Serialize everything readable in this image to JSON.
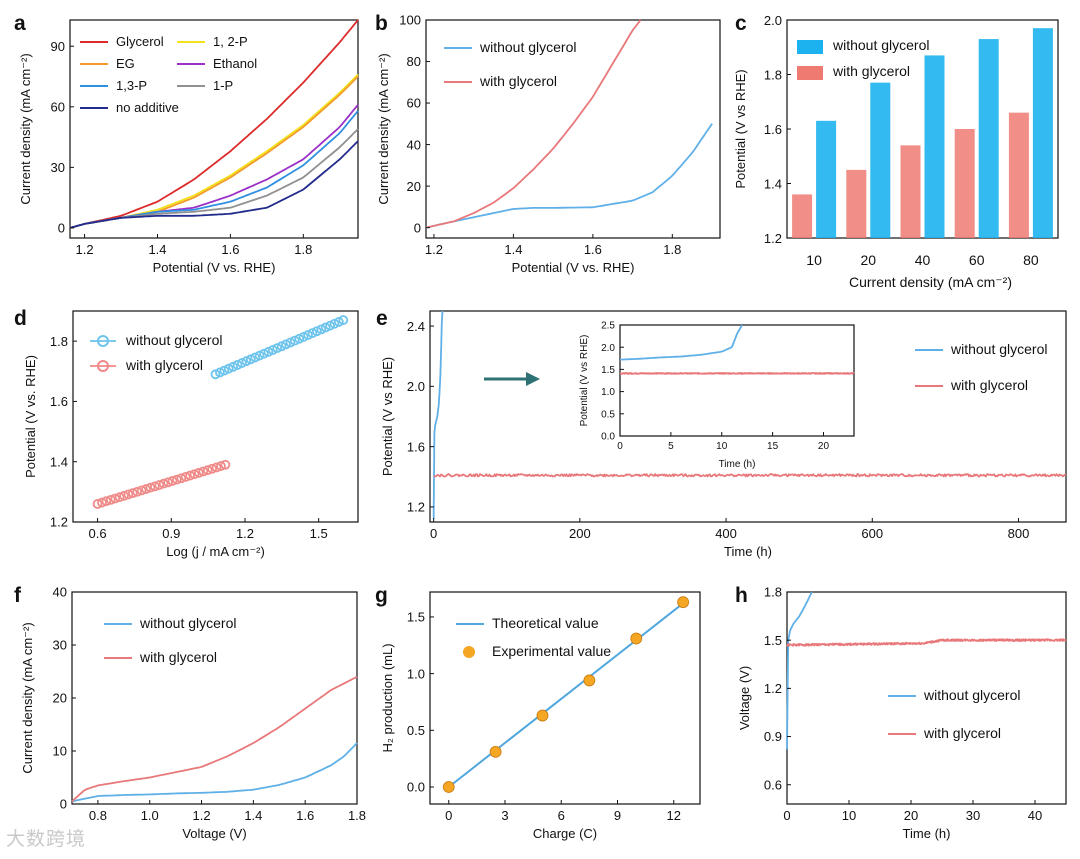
{
  "watermark": "大数跨境",
  "chart_data": [
    {
      "id": "a",
      "type": "line",
      "panel_label": "a",
      "xlabel": "Potential (V vs. RHE)",
      "ylabel": "Current density (mA cm⁻²)",
      "xlim": [
        1.16,
        1.95
      ],
      "ylim": [
        -5,
        103
      ],
      "xticks": [
        1.2,
        1.4,
        1.6,
        1.8
      ],
      "yticks": [
        0,
        30,
        60,
        90
      ],
      "xdec": 1,
      "ydec": 0,
      "legend_layout": "grid-top-left",
      "series": [
        {
          "name": "Glycerol",
          "color": "#dd2b2b",
          "x": [
            1.16,
            1.2,
            1.3,
            1.4,
            1.5,
            1.6,
            1.7,
            1.8,
            1.9,
            1.95
          ],
          "y": [
            0,
            2,
            6,
            13,
            24,
            38,
            54,
            72,
            92,
            103
          ]
        },
        {
          "name": "1, 2-P",
          "color": "#f2e21a",
          "x": [
            1.16,
            1.2,
            1.3,
            1.4,
            1.5,
            1.6,
            1.7,
            1.8,
            1.9,
            1.95
          ],
          "y": [
            0,
            2,
            5,
            9,
            16,
            26,
            38,
            51,
            67,
            76
          ]
        },
        {
          "name": "EG",
          "color": "#f39b2b",
          "x": [
            1.16,
            1.2,
            1.3,
            1.4,
            1.5,
            1.6,
            1.7,
            1.8,
            1.9,
            1.95
          ],
          "y": [
            0,
            2,
            5,
            8,
            15,
            25,
            37,
            50,
            66,
            75
          ]
        },
        {
          "name": "Ethanol",
          "color": "#9b30c8",
          "x": [
            1.16,
            1.2,
            1.3,
            1.4,
            1.5,
            1.6,
            1.7,
            1.8,
            1.9,
            1.95
          ],
          "y": [
            0,
            2,
            5,
            8,
            10,
            16,
            24,
            34,
            50,
            61
          ]
        },
        {
          "name": "1,3-P",
          "color": "#2f8fe0",
          "x": [
            1.16,
            1.2,
            1.3,
            1.4,
            1.5,
            1.6,
            1.7,
            1.8,
            1.9,
            1.95
          ],
          "y": [
            0,
            2,
            5,
            8,
            9,
            13,
            20,
            31,
            47,
            58
          ]
        },
        {
          "name": "1-P",
          "color": "#909090",
          "x": [
            1.16,
            1.2,
            1.3,
            1.4,
            1.5,
            1.6,
            1.7,
            1.8,
            1.9,
            1.95
          ],
          "y": [
            0,
            2,
            5,
            7,
            8,
            10,
            16,
            25,
            40,
            49
          ]
        },
        {
          "name": "no additive",
          "color": "#222c8c",
          "x": [
            1.16,
            1.2,
            1.3,
            1.4,
            1.5,
            1.6,
            1.7,
            1.8,
            1.9,
            1.95
          ],
          "y": [
            0,
            2,
            5,
            6,
            6,
            7,
            10,
            19,
            34,
            43
          ]
        }
      ]
    },
    {
      "id": "b",
      "type": "line",
      "panel_label": "b",
      "xlabel": "Potential (V vs. RHE)",
      "ylabel": "Current density (mA cm⁻²)",
      "xlim": [
        1.18,
        1.92
      ],
      "ylim": [
        -5,
        100
      ],
      "xticks": [
        1.2,
        1.4,
        1.6,
        1.8
      ],
      "yticks": [
        0,
        20,
        40,
        60,
        80,
        100
      ],
      "xdec": 1,
      "ydec": 0,
      "legend_layout": "top-left",
      "series": [
        {
          "name": "without glycerol",
          "color": "#5fb0e8",
          "x": [
            1.18,
            1.25,
            1.3,
            1.35,
            1.4,
            1.45,
            1.5,
            1.6,
            1.7,
            1.75,
            1.8,
            1.85,
            1.9
          ],
          "y": [
            0,
            3,
            5,
            7,
            9,
            9.5,
            9.5,
            9.8,
            13,
            17,
            25,
            36,
            50
          ]
        },
        {
          "name": "with glycerol",
          "color": "#e8787a",
          "x": [
            1.18,
            1.25,
            1.3,
            1.35,
            1.4,
            1.45,
            1.5,
            1.55,
            1.6,
            1.65,
            1.7,
            1.72
          ],
          "y": [
            0,
            3,
            7,
            12,
            19,
            28,
            38,
            50,
            63,
            79,
            95,
            100
          ]
        }
      ]
    },
    {
      "id": "c",
      "type": "bar",
      "panel_label": "c",
      "xlabel": "Current density (mA cm⁻²)",
      "ylabel": "Potential (V vs RHE)",
      "categories": [
        "10",
        "20",
        "40",
        "60",
        "80"
      ],
      "ylim": [
        1.2,
        2.0
      ],
      "yticks": [
        1.2,
        1.4,
        1.6,
        1.8,
        2.0
      ],
      "ydec": 1,
      "legend_layout": "top-left",
      "series": [
        {
          "name": "without glycerol",
          "color": "#1cb2ef",
          "values": [
            1.63,
            1.77,
            1.87,
            1.93,
            1.97
          ]
        },
        {
          "name": "with glycerol",
          "color": "#ef7a72",
          "values": [
            1.36,
            1.45,
            1.54,
            1.6,
            1.66
          ]
        }
      ]
    },
    {
      "id": "d",
      "type": "scatter",
      "panel_label": "d",
      "xlabel": "Log (j / mA cm⁻²)",
      "ylabel": "Potential (V vs. RHE)",
      "xlim": [
        0.5,
        1.66
      ],
      "ylim": [
        1.2,
        1.9
      ],
      "xticks": [
        0.6,
        0.9,
        1.2,
        1.5
      ],
      "yticks": [
        1.2,
        1.4,
        1.6,
        1.8
      ],
      "xdec": 1,
      "ydec": 1,
      "legend_layout": "top-left",
      "series": [
        {
          "name": "without glycerol",
          "color": "#6cc3ec",
          "x_range": [
            1.08,
            1.6
          ],
          "y_range": [
            1.69,
            1.87
          ],
          "points": 30
        },
        {
          "name": "with glycerol",
          "color": "#ef8a88",
          "x_range": [
            0.6,
            1.12
          ],
          "y_range": [
            1.26,
            1.39
          ],
          "points": 30
        }
      ]
    },
    {
      "id": "e",
      "type": "line",
      "panel_label": "e",
      "xlabel": "Time (h)",
      "ylabel": "Potential (V vs RHE)",
      "xlim": [
        -5,
        865
      ],
      "ylim": [
        1.1,
        2.5
      ],
      "xticks": [
        0,
        200,
        400,
        600,
        800
      ],
      "yticks": [
        1.2,
        1.6,
        2.0,
        2.4
      ],
      "xdec": 0,
      "ydec": 1,
      "legend_layout": "right",
      "series": [
        {
          "name": "without glycerol",
          "color": "#5fb0e8",
          "x": [
            0,
            1,
            2,
            3,
            4,
            5,
            6,
            7,
            8,
            9,
            10,
            11,
            12
          ],
          "y": [
            1.12,
            1.69,
            1.74,
            1.76,
            1.78,
            1.8,
            1.84,
            1.88,
            1.96,
            2.05,
            2.2,
            2.4,
            2.5
          ]
        },
        {
          "name": "with glycerol",
          "color": "#e8787a",
          "x": [
            0,
            865
          ],
          "y": [
            1.41,
            1.41
          ],
          "noise": 0.008
        }
      ],
      "inset": {
        "xlabel": "Time (h)",
        "ylabel": "Potential (V vs RHE)",
        "xlim": [
          0,
          23
        ],
        "ylim": [
          0,
          2.5
        ],
        "xticks": [
          0,
          5,
          10,
          15,
          20
        ],
        "yticks": [
          0.0,
          0.5,
          1.0,
          1.5,
          2.0,
          2.5
        ],
        "xdec": 0,
        "ydec": 1,
        "series": [
          {
            "name": "without glycerol",
            "color": "#5fb0e8",
            "x": [
              0,
              2,
              4,
              6,
              8,
              10,
              11,
              11.5,
              12
            ],
            "y": [
              1.72,
              1.74,
              1.77,
              1.79,
              1.83,
              1.9,
              2.0,
              2.3,
              2.5
            ]
          },
          {
            "name": "with glycerol",
            "color": "#e8787a",
            "x": [
              0,
              23
            ],
            "y": [
              1.41,
              1.41
            ],
            "noise": 0.01
          }
        ]
      }
    },
    {
      "id": "f",
      "type": "line",
      "panel_label": "f",
      "xlabel": "Voltage (V)",
      "ylabel": "Current density (mA cm⁻²)",
      "xlim": [
        0.7,
        1.8
      ],
      "ylim": [
        0,
        40
      ],
      "xticks": [
        0.8,
        1.0,
        1.2,
        1.4,
        1.6,
        1.8
      ],
      "yticks": [
        0,
        10,
        20,
        30,
        40
      ],
      "xdec": 1,
      "ydec": 0,
      "legend_layout": "top-left",
      "series": [
        {
          "name": "without glycerol",
          "color": "#5fb0e8",
          "x": [
            0.7,
            0.8,
            0.9,
            1.0,
            1.1,
            1.2,
            1.3,
            1.4,
            1.5,
            1.6,
            1.7,
            1.75,
            1.8
          ],
          "y": [
            0.5,
            1.5,
            1.7,
            1.8,
            2,
            2.1,
            2.3,
            2.7,
            3.6,
            5,
            7.3,
            9,
            11.5
          ]
        },
        {
          "name": "with glycerol",
          "color": "#e8787a",
          "x": [
            0.7,
            0.75,
            0.8,
            0.9,
            1.0,
            1.1,
            1.2,
            1.3,
            1.4,
            1.5,
            1.6,
            1.7,
            1.8
          ],
          "y": [
            0.5,
            2.7,
            3.5,
            4.3,
            5,
            6,
            7,
            9,
            11.5,
            14.5,
            18,
            21.5,
            24
          ]
        }
      ]
    },
    {
      "id": "g",
      "type": "scatter",
      "panel_label": "g",
      "xlabel": "Charge (C)",
      "ylabel": "H₂ production (mL)",
      "xlim": [
        -1,
        13.4
      ],
      "ylim": [
        -0.15,
        1.72
      ],
      "xticks": [
        0,
        3,
        6,
        9,
        12
      ],
      "yticks": [
        0.0,
        0.5,
        1.0,
        1.5
      ],
      "xdec": 0,
      "ydec": 1,
      "legend_layout": "top-left",
      "series": [
        {
          "name": "Theoretical value",
          "color": "#4fa7de",
          "x": [
            0,
            12.5
          ],
          "y": [
            0,
            1.62
          ],
          "kind": "line"
        },
        {
          "name": "Experimental value",
          "color": "#f5a623",
          "x": [
            0,
            2.5,
            5,
            7.5,
            10,
            12.5
          ],
          "y": [
            0,
            0.31,
            0.63,
            0.94,
            1.31,
            1.63
          ],
          "kind": "points"
        }
      ]
    },
    {
      "id": "h",
      "type": "line",
      "panel_label": "h",
      "xlabel": "Time (h)",
      "ylabel": "Voltage (V)",
      "xlim": [
        0,
        45
      ],
      "ylim": [
        0.48,
        1.8
      ],
      "xticks": [
        0,
        10,
        20,
        30,
        40
      ],
      "yticks": [
        0.6,
        0.9,
        1.2,
        1.5,
        1.8
      ],
      "xdec": 0,
      "ydec": 1,
      "legend_layout": "right",
      "series": [
        {
          "name": "without glycerol",
          "color": "#5fb0e8",
          "x": [
            0,
            0.2,
            0.5,
            1,
            2,
            3,
            4
          ],
          "y": [
            0.82,
            1.5,
            1.56,
            1.6,
            1.65,
            1.72,
            1.8
          ]
        },
        {
          "name": "with glycerol",
          "color": "#e8787a",
          "x": [
            0,
            22,
            25,
            45
          ],
          "y": [
            1.47,
            1.48,
            1.5,
            1.5
          ],
          "noise": 0.006
        }
      ]
    }
  ]
}
